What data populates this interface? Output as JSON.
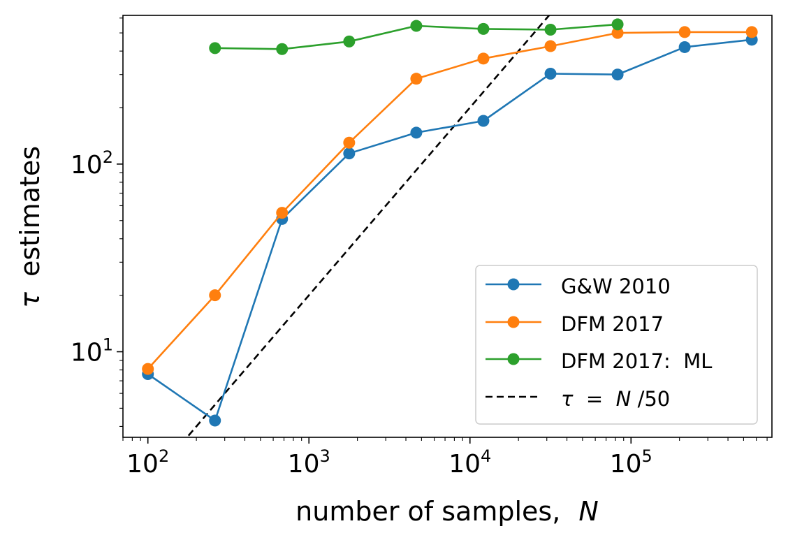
{
  "chart_data": {
    "type": "line",
    "xscale": "log",
    "yscale": "log",
    "xlabel_text": "number of samples,",
    "xlabel_var": "N",
    "ylabel_var": "τ",
    "ylabel_text": "estimates",
    "xlim": [
      70,
      750000
    ],
    "ylim": [
      3.5,
      620
    ],
    "xticks": [
      {
        "value": 100,
        "base": "10",
        "exp": "2"
      },
      {
        "value": 1000,
        "base": "10",
        "exp": "3"
      },
      {
        "value": 10000,
        "base": "10",
        "exp": "4"
      },
      {
        "value": 100000,
        "base": "10",
        "exp": "5"
      }
    ],
    "yticks": [
      {
        "value": 10,
        "base": "10",
        "exp": "1"
      },
      {
        "value": 100,
        "base": "10",
        "exp": "2"
      }
    ],
    "grid": false,
    "legend_position": "lower-right",
    "series": [
      {
        "name": "G&W 2010",
        "color": "#1f77b4",
        "marker": "circle",
        "x": [
          100,
          261,
          681,
          1778,
          4642,
          12115,
          31623,
          82540,
          215443,
          562341
        ],
        "y": [
          7.6,
          4.3,
          51,
          114,
          147,
          170,
          303,
          300,
          420,
          460
        ]
      },
      {
        "name": "DFM 2017",
        "color": "#ff7f0e",
        "marker": "circle",
        "x": [
          100,
          261,
          681,
          1778,
          4642,
          12115,
          31623,
          82540,
          215443,
          562341
        ],
        "y": [
          8.1,
          20,
          55,
          130,
          285,
          365,
          425,
          500,
          505,
          505
        ]
      },
      {
        "name": "DFM 2017:  ML",
        "color": "#2ca02c",
        "marker": "circle",
        "x": [
          261,
          681,
          1778,
          4642,
          12115,
          31623,
          82540
        ],
        "y": [
          415,
          410,
          450,
          545,
          525,
          520,
          555
        ]
      }
    ],
    "reference_line": {
      "label_lhs": "τ",
      "label_eq": " = ",
      "label_rhs_var": "N",
      "label_rhs_rest": "/50",
      "color": "#000000",
      "style": "dashed",
      "slope_divisor": 50
    }
  }
}
